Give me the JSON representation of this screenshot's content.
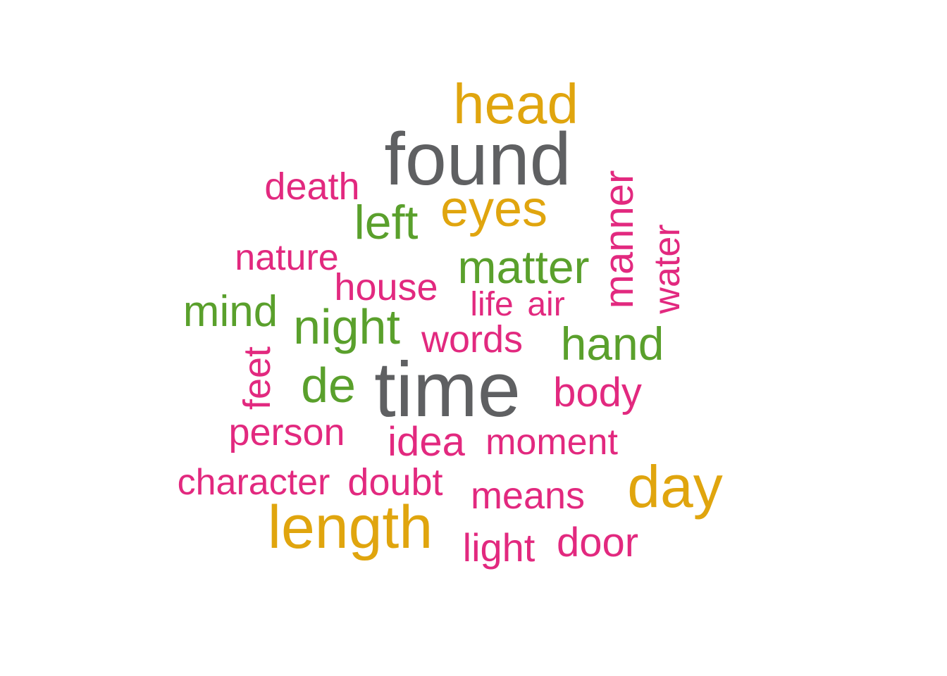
{
  "colors": {
    "gray": "#5f6062",
    "gold": "#e0a50e",
    "green": "#5aa02c",
    "pink": "#e2297f"
  },
  "words": {
    "time": "time",
    "found": "found",
    "length": "length",
    "head": "head",
    "day": "day",
    "eyes": "eyes",
    "night": "night",
    "matter": "matter",
    "hand": "hand",
    "mind": "mind",
    "left": "left",
    "de": "de",
    "manner": "manner",
    "water": "water",
    "feet": "feet",
    "death": "death",
    "nature": "nature",
    "house": "house",
    "life": "life",
    "air": "air",
    "words": "words",
    "body": "body",
    "person": "person",
    "idea": "idea",
    "moment": "moment",
    "character": "character",
    "doubt": "doubt",
    "means": "means",
    "light": "light",
    "door": "door"
  }
}
